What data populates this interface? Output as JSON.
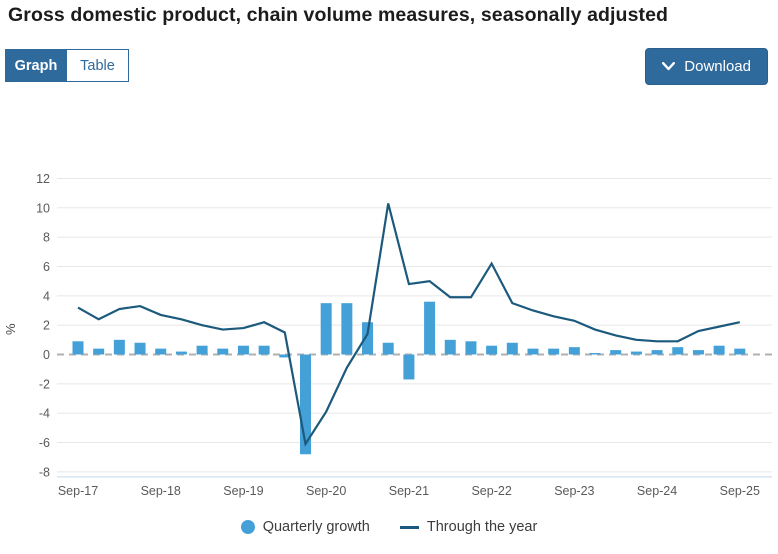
{
  "page": {
    "title": "Gross domestic product, chain volume measures, seasonally adjusted"
  },
  "toolbar": {
    "view_tabs": [
      {
        "label": "Graph",
        "active": true
      },
      {
        "label": "Table",
        "active": false
      }
    ],
    "download_label": "Download",
    "download_icon": "chevron-down-icon"
  },
  "colors": {
    "accent_blue": "#2f6a9d",
    "bar": "#44a1d8",
    "line": "#1c5a7d",
    "grid": "#e8e8e8",
    "zero_line": "#b0b0b0",
    "axis_text": "#5a5a5a",
    "bottom_border": "#cfe0ee"
  },
  "chart_data": {
    "type": "bar",
    "title": "",
    "ylabel": "%",
    "xlabel": "",
    "ylim": [
      -8,
      12
    ],
    "ytick_step": 2,
    "grid": true,
    "legend_position": "bottom",
    "categories": [
      "Sep-17",
      "Dec-17",
      "Mar-18",
      "Jun-18",
      "Sep-18",
      "Dec-18",
      "Mar-19",
      "Jun-19",
      "Sep-19",
      "Dec-19",
      "Mar-20",
      "Jun-20",
      "Sep-20",
      "Dec-20",
      "Mar-21",
      "Jun-21",
      "Sep-21",
      "Dec-21",
      "Mar-22",
      "Jun-22",
      "Sep-22",
      "Dec-22",
      "Mar-23",
      "Jun-23",
      "Sep-23",
      "Dec-23",
      "Mar-24",
      "Jun-24",
      "Sep-24",
      "Dec-24",
      "Mar-25",
      "Jun-25",
      "Sep-25"
    ],
    "x_tick_labels": [
      "Sep-17",
      "Sep-18",
      "Sep-19",
      "Sep-20",
      "Sep-21",
      "Sep-22",
      "Sep-23",
      "Sep-24",
      "Sep-25"
    ],
    "series": [
      {
        "name": "Quarterly growth",
        "type": "bar",
        "values": [
          0.9,
          0.4,
          1.0,
          0.8,
          0.4,
          0.2,
          0.6,
          0.4,
          0.6,
          0.6,
          -0.2,
          -6.8,
          3.5,
          3.5,
          2.2,
          0.8,
          -1.7,
          3.6,
          1.0,
          0.9,
          0.6,
          0.8,
          0.4,
          0.4,
          0.5,
          0.1,
          0.3,
          0.2,
          0.3,
          0.5,
          0.3,
          0.6,
          0.4
        ]
      },
      {
        "name": "Through the year",
        "type": "line",
        "values": [
          3.2,
          2.4,
          3.1,
          3.3,
          2.7,
          2.4,
          2.0,
          1.7,
          1.8,
          2.2,
          1.5,
          -6.1,
          -3.9,
          -0.9,
          1.4,
          10.3,
          4.8,
          5.0,
          3.9,
          3.9,
          6.2,
          3.5,
          3.0,
          2.6,
          2.3,
          1.7,
          1.3,
          1.0,
          0.9,
          0.9,
          1.6,
          1.9,
          2.2
        ]
      }
    ]
  }
}
